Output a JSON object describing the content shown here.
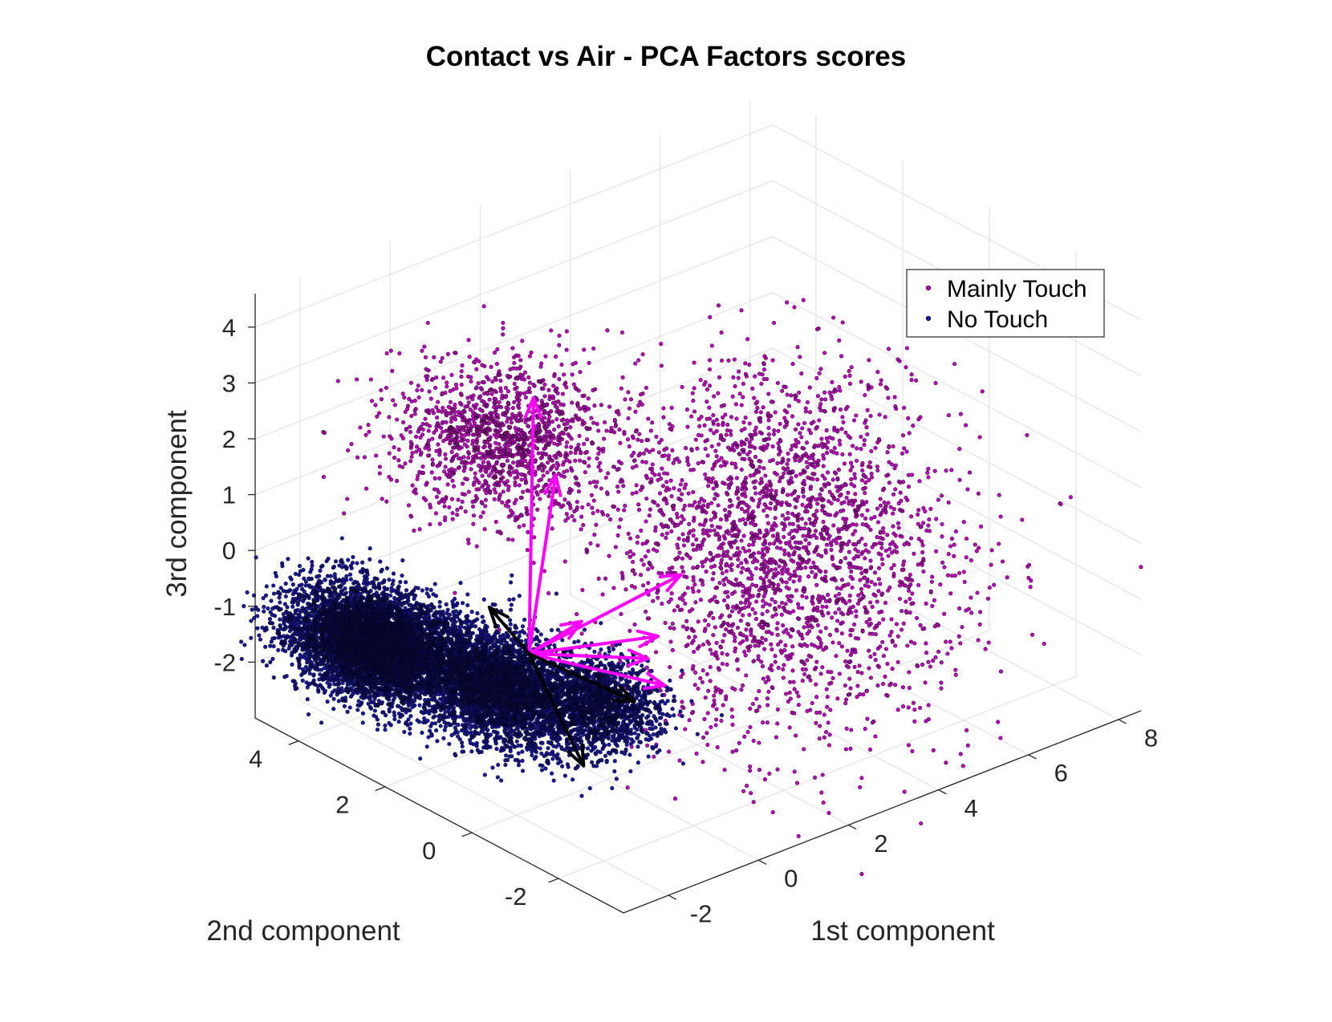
{
  "chart_data": {
    "type": "scatter3d",
    "title": "Contact vs Air - PCA Factors scores",
    "xlabel": "1st component",
    "ylabel": "2nd component",
    "zlabel": "3rd component",
    "xlim": [
      -3,
      8.5
    ],
    "ylim": [
      -3.5,
      5
    ],
    "zlim": [
      -3,
      4.6
    ],
    "xticks": [
      "-2",
      "0",
      "2",
      "4",
      "6",
      "8"
    ],
    "yticks": [
      "-2",
      "0",
      "2",
      "4"
    ],
    "zticks": [
      "-2",
      "-1",
      "0",
      "1",
      "2",
      "3",
      "4"
    ],
    "grid": true,
    "legend_position": "top-right",
    "series": [
      {
        "name": "Mainly Touch",
        "color": "#cc00cc",
        "edge": "#3a0a3a",
        "clusters": [
          {
            "center": [
              -1.2,
              1.2,
              3.0
            ],
            "spread": [
              0.9,
              0.9,
              0.6
            ],
            "count": 1400
          },
          {
            "center": [
              3.5,
              -0.8,
              -0.2
            ],
            "spread": [
              1.6,
              1.2,
              1.4
            ],
            "count": 1700
          },
          {
            "center": [
              4.2,
              1.0,
              0.6
            ],
            "spread": [
              1.4,
              1.0,
              1.0
            ],
            "count": 900
          }
        ]
      },
      {
        "name": "No Touch",
        "color": "#1a1aa8",
        "edge": "#05052a",
        "clusters": [
          {
            "center": [
              -2.0,
              3.3,
              -1.3
            ],
            "spread": [
              0.55,
              0.8,
              0.35
            ],
            "count": 6000
          },
          {
            "center": [
              -1.0,
              1.5,
              -1.6
            ],
            "spread": [
              0.5,
              0.8,
              0.4
            ],
            "count": 4000
          },
          {
            "center": [
              0.2,
              0.4,
              -1.9
            ],
            "spread": [
              0.5,
              0.5,
              0.35
            ],
            "count": 1500
          }
        ]
      }
    ],
    "vectors": [
      {
        "color": "#ff00ff",
        "from": [
          0.1,
          1.9,
          -1.55
        ],
        "to": [
          0.2,
          1.9,
          3.0
        ]
      },
      {
        "color": "#ff00ff",
        "from": [
          0.1,
          1.9,
          -1.55
        ],
        "to": [
          0.5,
          1.7,
          1.6
        ]
      },
      {
        "color": "#ff00ff",
        "from": [
          0.1,
          1.9,
          -1.55
        ],
        "to": [
          0.4,
          1.0,
          -0.7
        ]
      },
      {
        "color": "#ff00ff",
        "from": [
          0.1,
          1.9,
          -1.55
        ],
        "to": [
          2.8,
          1.2,
          -0.7
        ]
      },
      {
        "color": "#ff00ff",
        "from": [
          0.1,
          1.9,
          -1.55
        ],
        "to": [
          2.1,
          1.0,
          -1.5
        ]
      },
      {
        "color": "#ff00ff",
        "from": [
          0.1,
          1.9,
          -1.55
        ],
        "to": [
          1.3,
          0.4,
          -1.4
        ]
      },
      {
        "color": "#ff00ff",
        "from": [
          0.1,
          1.9,
          -1.55
        ],
        "to": [
          1.0,
          -0.3,
          -1.5
        ]
      },
      {
        "color": "#000000",
        "from": [
          0.1,
          1.9,
          -1.55
        ],
        "to": [
          -0.3,
          2.4,
          -0.8
        ]
      },
      {
        "color": "#000000",
        "from": [
          0.1,
          1.9,
          -1.55
        ],
        "to": [
          0.9,
          0.3,
          -2.0
        ]
      },
      {
        "color": "#000000",
        "from": [
          0.1,
          1.9,
          -1.55
        ],
        "to": [
          -0.9,
          -0.4,
          -2.3
        ]
      }
    ]
  }
}
